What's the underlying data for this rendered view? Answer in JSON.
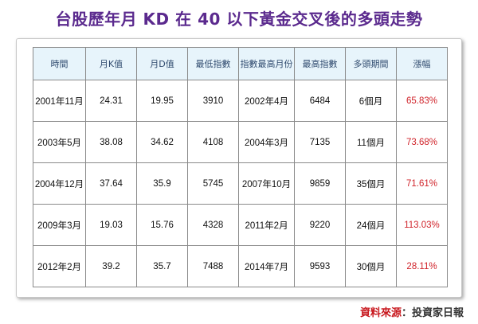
{
  "title": "台股歷年月 KD 在 40 以下黃金交叉後的多頭走勢",
  "table": {
    "headers": [
      "時間",
      "月K值",
      "月D值",
      "最低指數",
      "指數最高月份",
      "最高指數",
      "多頭期間",
      "漲幅"
    ],
    "rows": [
      [
        "2001年11月",
        "24.31",
        "19.95",
        "3910",
        "2002年4月",
        "6484",
        "6個月",
        "65.83%"
      ],
      [
        "2003年5月",
        "38.08",
        "34.62",
        "4108",
        "2004年3月",
        "7135",
        "11個月",
        "73.68%"
      ],
      [
        "2004年12月",
        "37.64",
        "35.9",
        "5745",
        "2007年10月",
        "9859",
        "35個月",
        "71.61%"
      ],
      [
        "2009年3月",
        "19.03",
        "15.76",
        "4328",
        "2011年2月",
        "9220",
        "24個月",
        "113.03%"
      ],
      [
        "2012年2月",
        "39.2",
        "35.7",
        "7488",
        "2014年7月",
        "9593",
        "30個月",
        "28.11%"
      ]
    ]
  },
  "source": {
    "label": "資料來源",
    "colon": "：",
    "value": "投資家日報"
  },
  "colors": {
    "title": "#5b2a8e",
    "header_bg": "#e7f4fb",
    "header_text": "#2f4a6e",
    "gain_text": "#d0232a",
    "source_label": "#c8181e"
  }
}
